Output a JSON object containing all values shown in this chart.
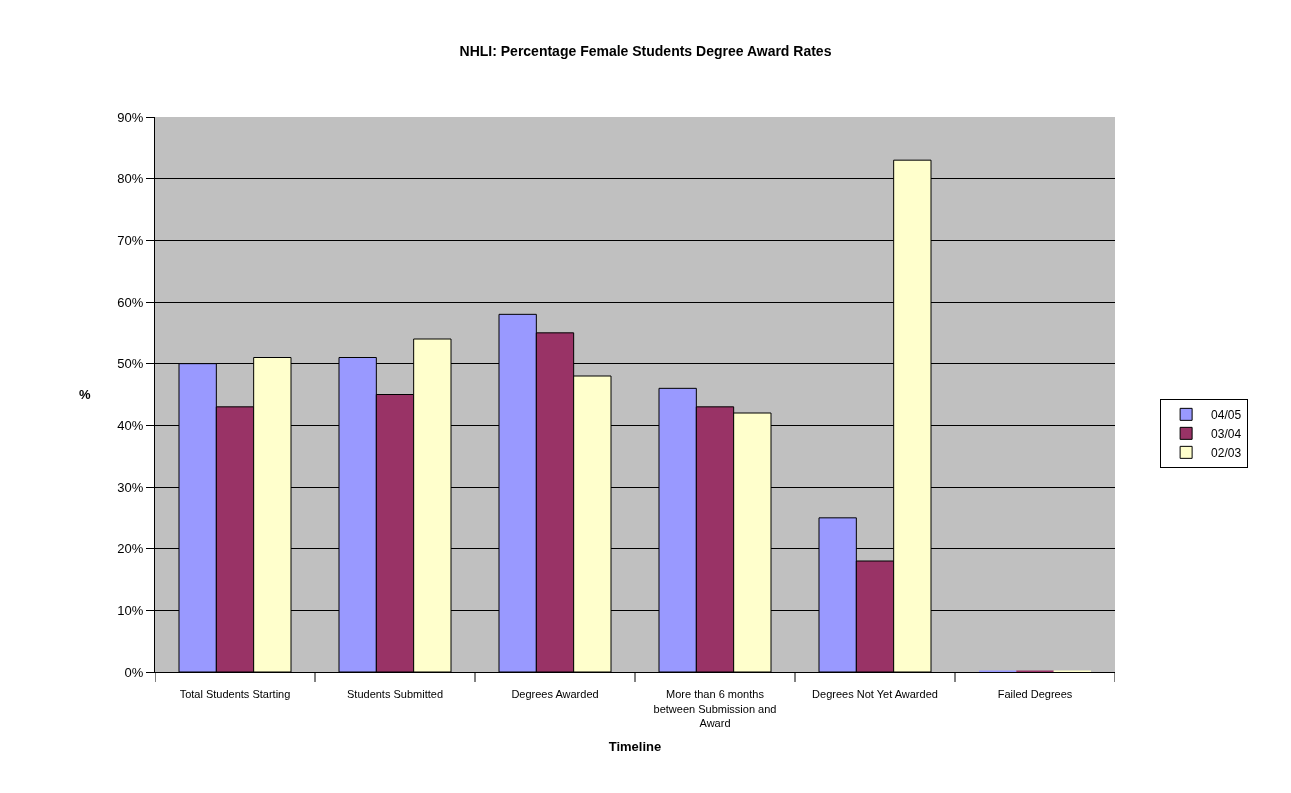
{
  "chart_data": {
    "type": "bar",
    "title": "NHLI: Percentage Female Students Degree Award Rates",
    "xlabel": "Timeline",
    "ylabel": "%",
    "categories": [
      "Total Students Starting",
      "Students Submitted",
      "Degrees Awarded",
      "More than 6 months between Submission and Award",
      "Degrees Not Yet Awarded",
      "Failed Degrees"
    ],
    "series": [
      {
        "name": "04/05",
        "color": "#9999ff",
        "values": [
          50,
          51,
          58,
          46,
          25,
          0
        ]
      },
      {
        "name": "03/04",
        "color": "#993366",
        "values": [
          43,
          45,
          55,
          43,
          18,
          0
        ]
      },
      {
        "name": "02/03",
        "color": "#ffffcc",
        "values": [
          51,
          54,
          48,
          42,
          83,
          0
        ]
      }
    ],
    "ylim": [
      0,
      90
    ],
    "yticks": [
      {
        "value": 0,
        "label": "0%"
      },
      {
        "value": 10,
        "label": "10%"
      },
      {
        "value": 20,
        "label": "20%"
      },
      {
        "value": 30,
        "label": "30%"
      },
      {
        "value": 40,
        "label": "40%"
      },
      {
        "value": 50,
        "label": "50%"
      },
      {
        "value": 60,
        "label": "60%"
      },
      {
        "value": 70,
        "label": "70%"
      },
      {
        "value": 80,
        "label": "80%"
      },
      {
        "value": 90,
        "label": "90%"
      }
    ],
    "grid": "y",
    "legend": "right"
  }
}
